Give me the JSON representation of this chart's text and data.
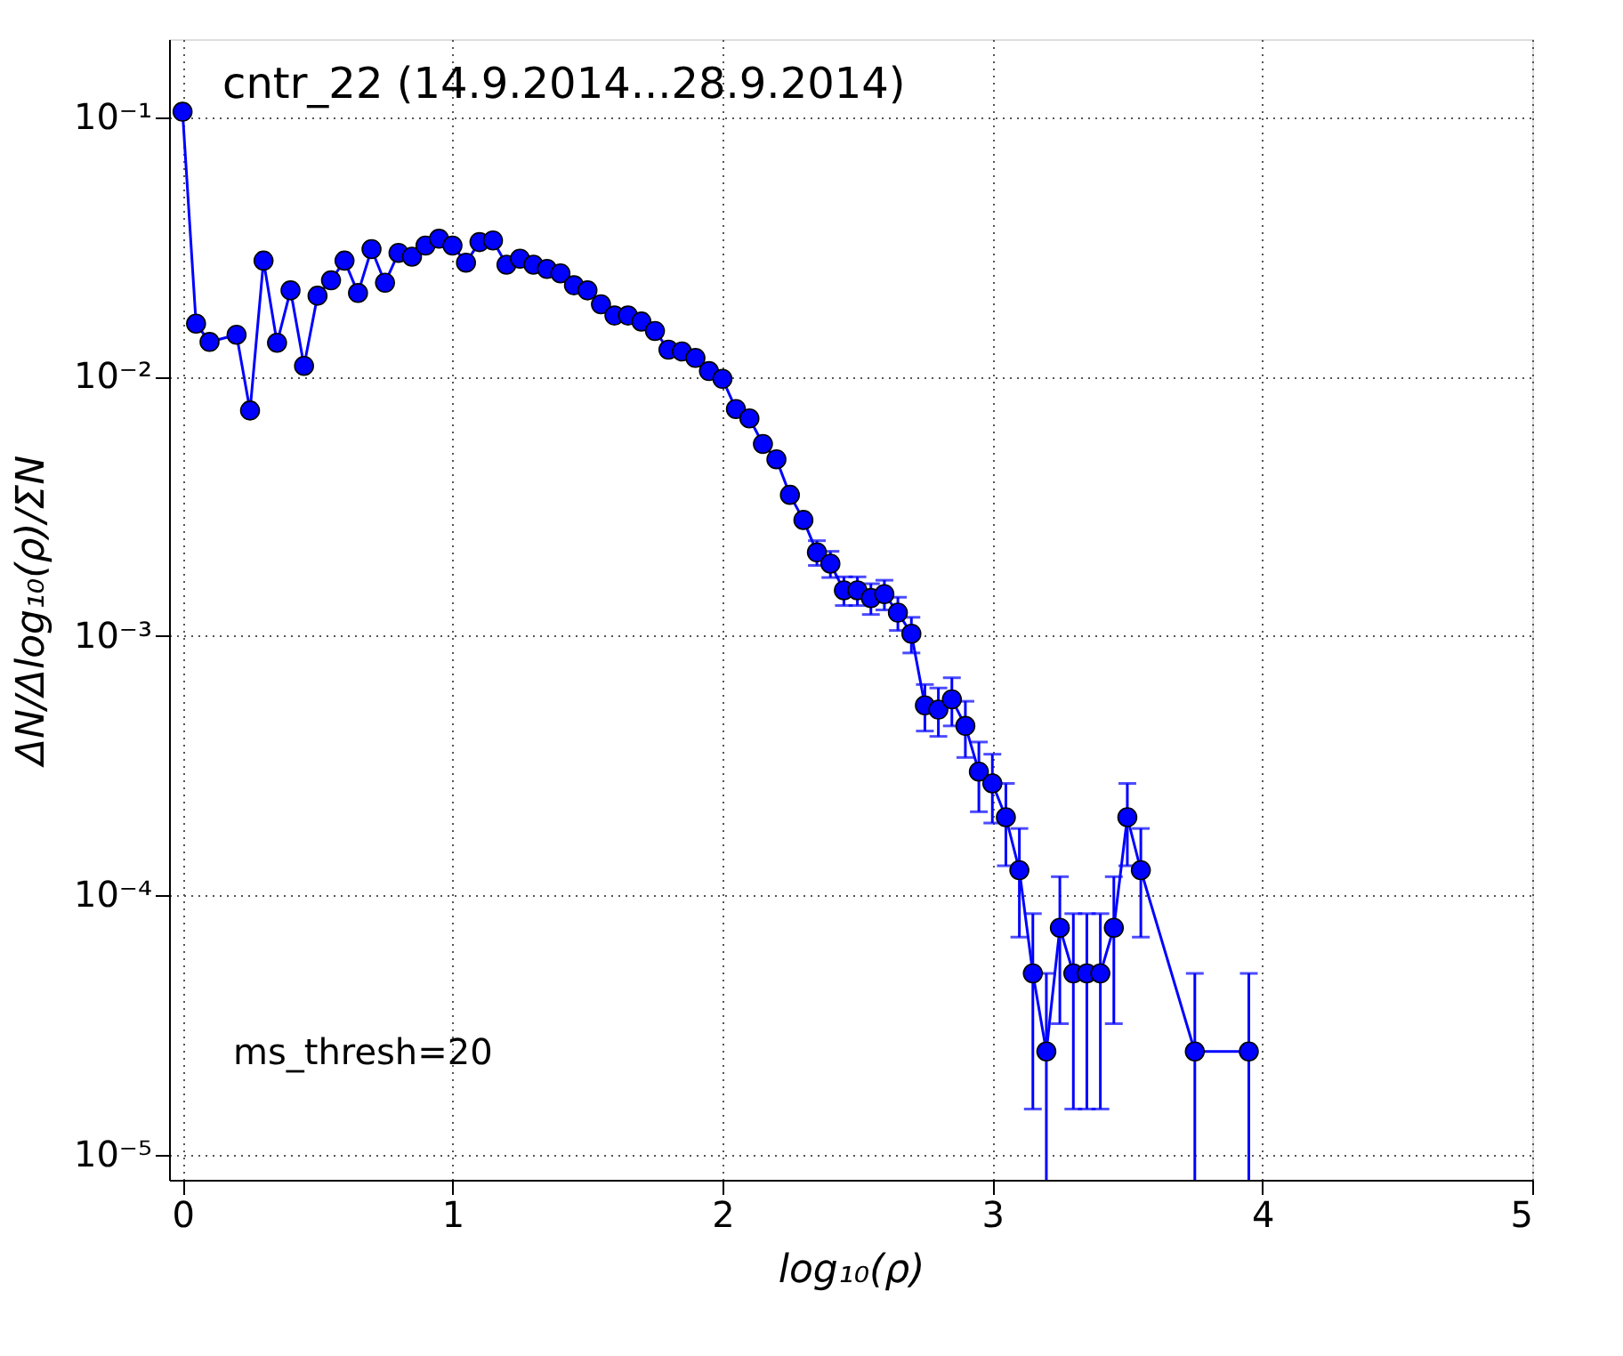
{
  "chart_data": {
    "type": "line",
    "title": "cntr_22 (14.9.2014...28.9.2014)",
    "xlabel": "log₁₀(ρ)",
    "ylabel": "ΔN/Δlog₁₀(ρ)/ΣN",
    "annotations": [
      "ms_thresh=20"
    ],
    "x": [
      0,
      0.05,
      0.1,
      0.2,
      0.25,
      0.3,
      0.35,
      0.4,
      0.45,
      0.5,
      0.55,
      0.6,
      0.65,
      0.7,
      0.75,
      0.8,
      0.85,
      0.9,
      0.95,
      1.0,
      1.05,
      1.1,
      1.15,
      1.2,
      1.25,
      1.3,
      1.35,
      1.4,
      1.45,
      1.5,
      1.55,
      1.6,
      1.65,
      1.7,
      1.75,
      1.8,
      1.85,
      1.9,
      1.95,
      2.0,
      2.05,
      2.1,
      2.15,
      2.2,
      2.25,
      2.3,
      2.35,
      2.4,
      2.45,
      2.5,
      2.55,
      2.6,
      2.65,
      2.7,
      2.75,
      2.8,
      2.85,
      2.9,
      2.95,
      3.0,
      3.05,
      3.1,
      3.15,
      3.2,
      3.25,
      3.3,
      3.35,
      3.4,
      3.45,
      3.5,
      3.55,
      3.75,
      3.95
    ],
    "series": [
      {
        "color": "#0000ff",
        "values": [
          0.105,
          0.016,
          0.0136,
          0.0145,
          0.0074,
          0.028,
          0.0135,
          0.0215,
          0.011,
          0.0205,
          0.0235,
          0.028,
          0.021,
          0.031,
          0.023,
          0.03,
          0.029,
          0.032,
          0.034,
          0.032,
          0.0275,
          0.033,
          0.0335,
          0.027,
          0.0285,
          0.027,
          0.026,
          0.025,
          0.0225,
          0.0215,
          0.019,
          0.0172,
          0.0172,
          0.0163,
          0.015,
          0.0127,
          0.0125,
          0.0118,
          0.0105,
          0.0098,
          0.0075,
          0.0069,
          0.0055,
          0.0048,
          0.0035,
          0.0028,
          0.0021,
          0.0019,
          0.0015,
          0.0015,
          0.0014,
          0.00145,
          0.00123,
          0.00102,
          0.00054,
          0.00052,
          0.00057,
          0.00045,
          0.0003,
          0.00027,
          0.0002,
          0.000125,
          5e-05,
          2.5e-05,
          7.5e-05,
          5e-05,
          5e-05,
          5e-05,
          7.5e-05,
          0.0002,
          0.000125,
          2.5e-05,
          2.5e-05
        ],
        "errors": [
          null,
          null,
          null,
          null,
          null,
          null,
          null,
          null,
          null,
          null,
          null,
          null,
          null,
          null,
          null,
          null,
          null,
          null,
          null,
          null,
          null,
          null,
          null,
          null,
          null,
          null,
          null,
          null,
          null,
          null,
          null,
          null,
          null,
          null,
          null,
          null,
          null,
          null,
          null,
          null,
          null,
          null,
          null,
          null,
          null,
          null,
          0.00023,
          0.00022,
          0.00019,
          0.00019,
          0.00019,
          0.00019,
          0.00018,
          0.00016,
          0.00011,
          0.00011,
          0.00012,
          0.00011,
          9e-05,
          8e-05,
          7e-05,
          5.6e-05,
          3.5e-05,
          [
            8e-06,
            5e-05
          ],
          4.3e-05,
          3.5e-05,
          3.5e-05,
          3.5e-05,
          4.3e-05,
          7e-05,
          5.6e-05,
          [
            8e-06,
            5e-05
          ],
          [
            8e-06,
            5e-05
          ]
        ]
      }
    ],
    "marker": "circle",
    "line_style": "solid",
    "log": "y",
    "grid": true,
    "xlim": [
      -0.05,
      5
    ],
    "xticks": [
      0,
      1,
      2,
      3,
      4,
      5
    ],
    "ylim": [
      8e-06,
      0.2
    ],
    "yticks": [
      {
        "value": 0.1,
        "label": "10⁻¹"
      },
      {
        "value": 0.01,
        "label": "10⁻²"
      },
      {
        "value": 0.001,
        "label": "10⁻³"
      },
      {
        "value": 0.0001,
        "label": "10⁻⁴"
      },
      {
        "value": 1e-05,
        "label": "10⁻⁵"
      }
    ]
  }
}
